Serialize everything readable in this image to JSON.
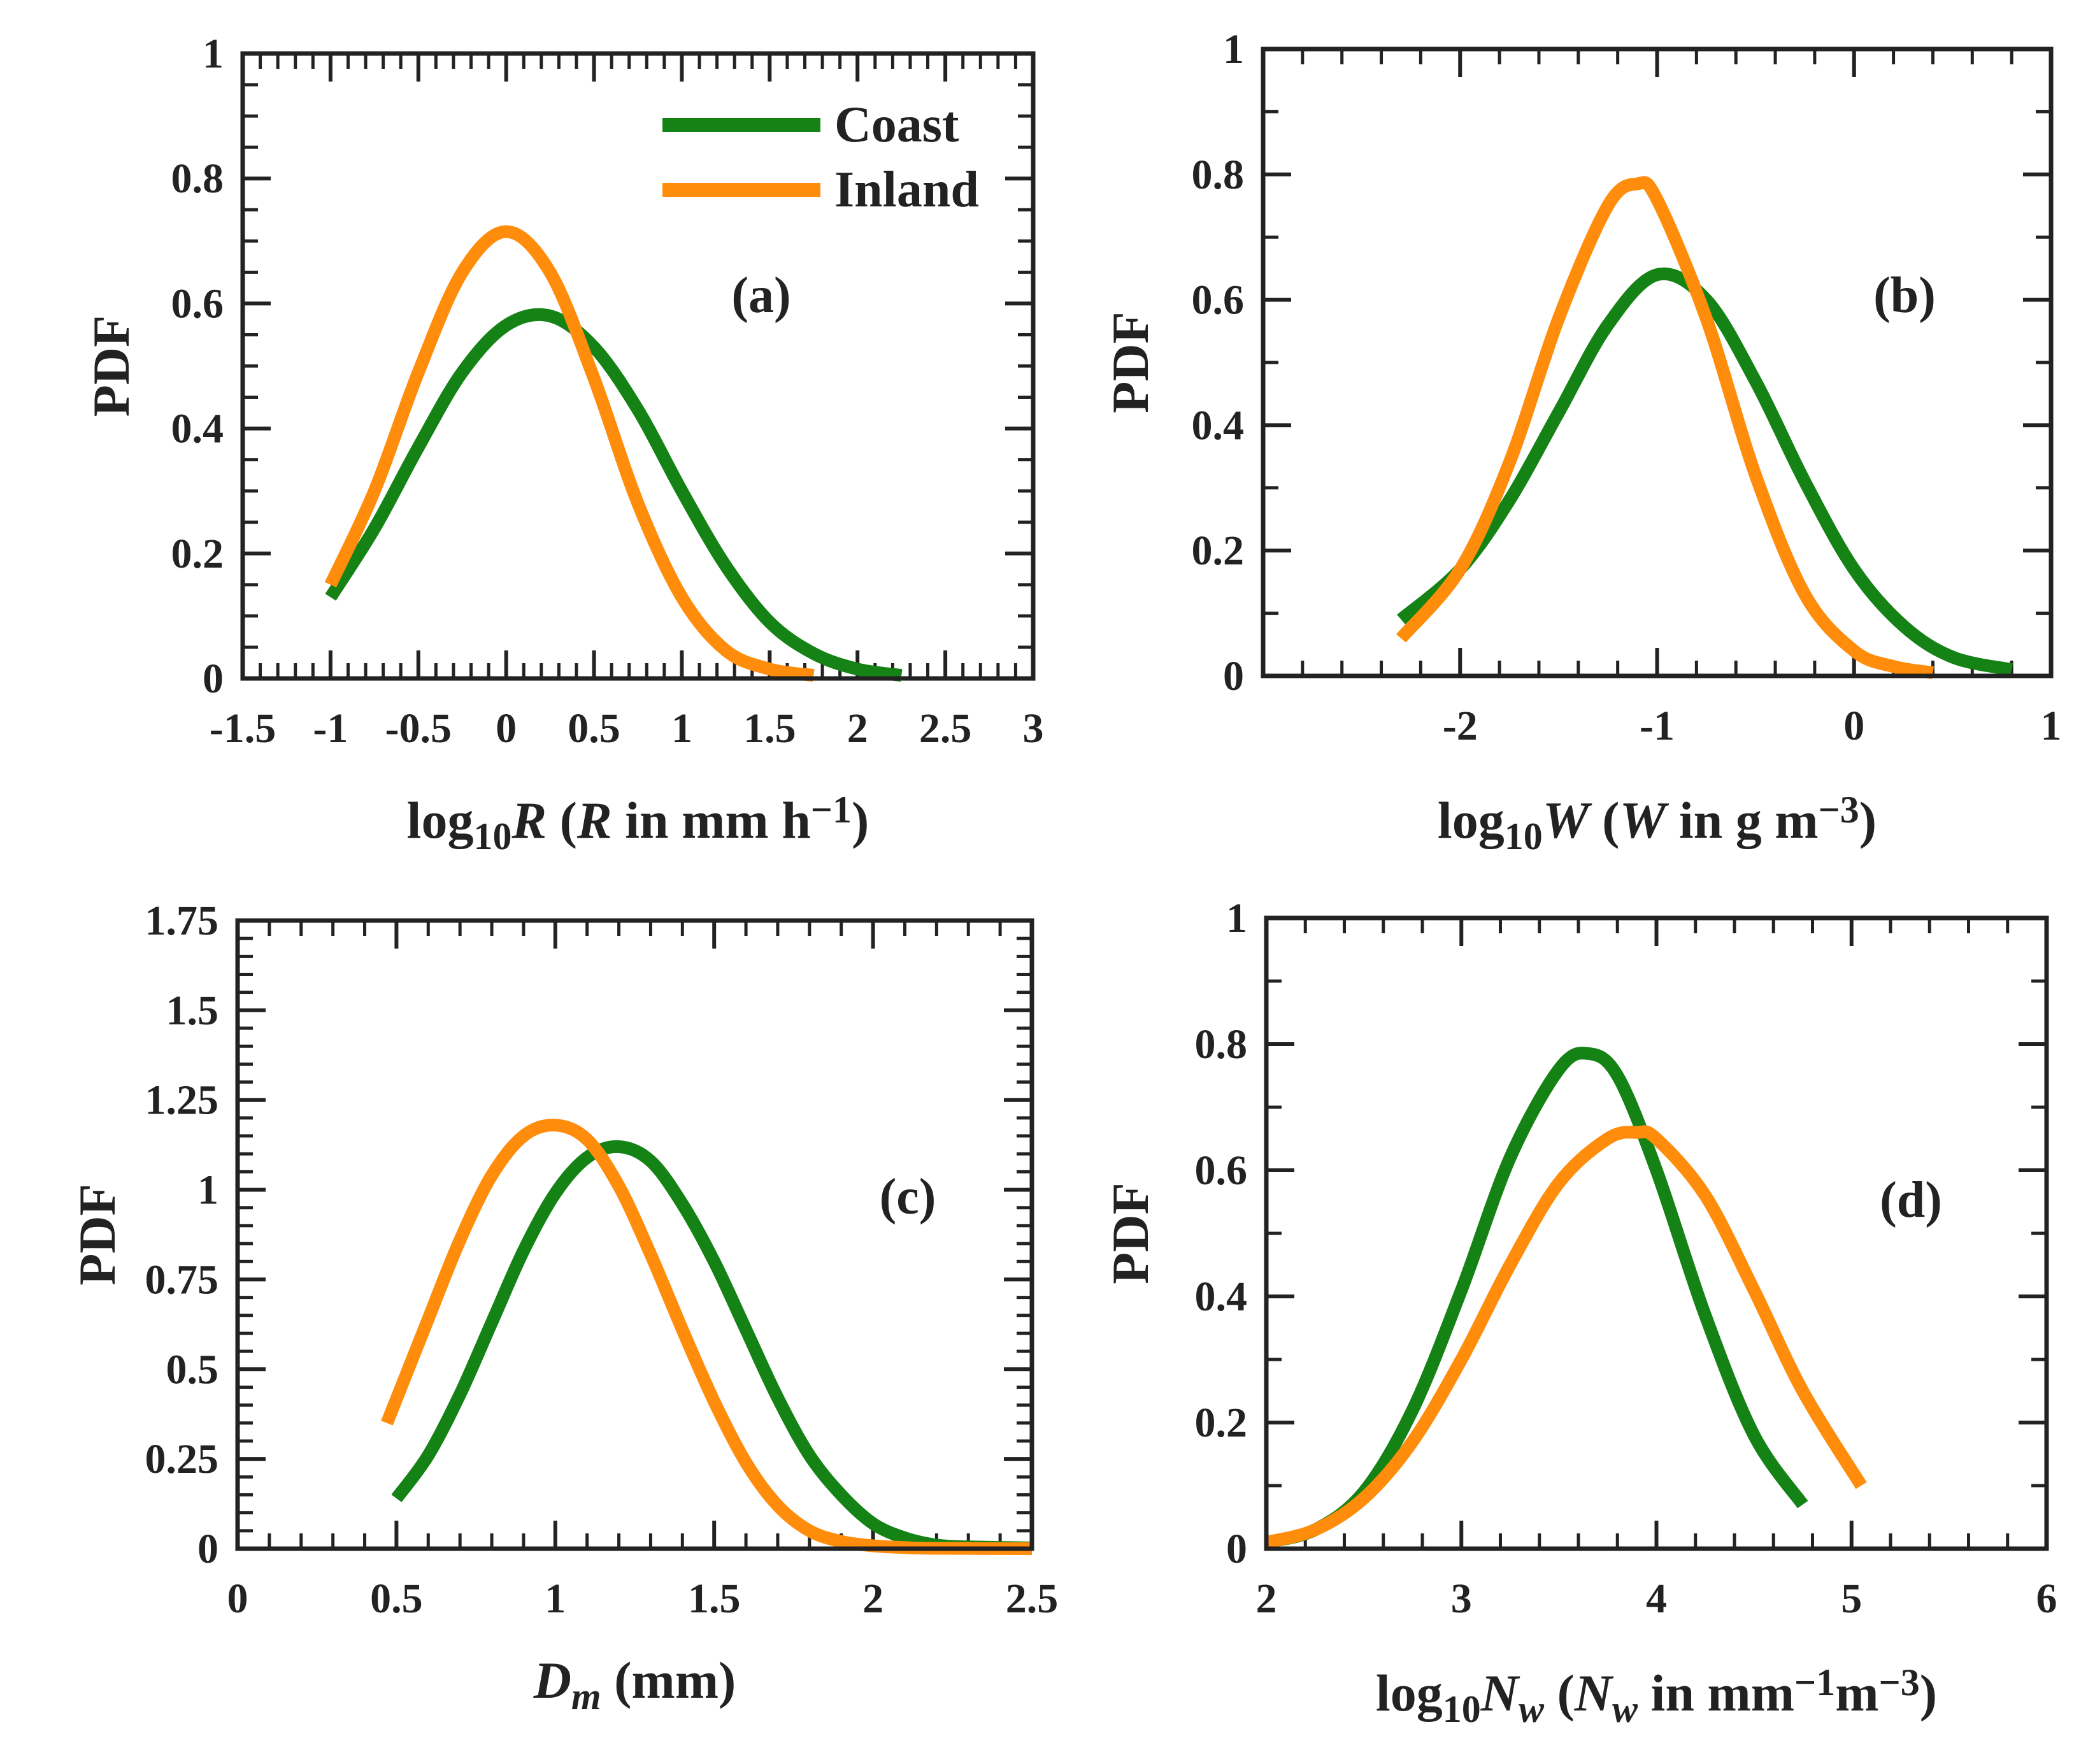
{
  "colors": {
    "coast": "#148214",
    "inland": "#ff8c0a",
    "axis": "#222222"
  },
  "legend": {
    "coast": "Coast",
    "inland": "Inland",
    "placement": "top-right of panel (a)"
  },
  "chart_data": [
    {
      "type": "line",
      "panel_label": "(a)",
      "ylabel": "PDF",
      "xlabel": {
        "prefix": "log",
        "sub": "10",
        "var": "R",
        "mid": " (",
        "var2": "R",
        "unit": " in mm h",
        "sup": "−1",
        "suffix": ")"
      },
      "xlim": [
        -1.5,
        3
      ],
      "ylim": [
        0,
        1
      ],
      "xticks": [
        "-1.5",
        "-1",
        "-0.5",
        "0",
        "0.5",
        "1",
        "1.5",
        "2",
        "2.5",
        "3"
      ],
      "yticks": [
        "0",
        "0.2",
        "0.4",
        "0.6",
        "0.8",
        "1"
      ],
      "minor_x": 0.1,
      "minor_y": 0.05,
      "legend": true,
      "series": [
        {
          "name": "Coast",
          "x": [
            -1.0,
            -0.75,
            -0.5,
            -0.25,
            0.0,
            0.25,
            0.5,
            0.75,
            1.0,
            1.25,
            1.5,
            1.75,
            2.0,
            2.25
          ],
          "y": [
            0.13,
            0.24,
            0.37,
            0.49,
            0.565,
            0.58,
            0.53,
            0.43,
            0.3,
            0.18,
            0.09,
            0.04,
            0.015,
            0.005
          ]
        },
        {
          "name": "Inland",
          "x": [
            -1.0,
            -0.75,
            -0.5,
            -0.25,
            0.0,
            0.25,
            0.5,
            0.75,
            1.0,
            1.25,
            1.5,
            1.75
          ],
          "y": [
            0.15,
            0.3,
            0.49,
            0.65,
            0.715,
            0.65,
            0.48,
            0.28,
            0.13,
            0.045,
            0.015,
            0.005
          ]
        }
      ]
    },
    {
      "type": "line",
      "panel_label": "(b)",
      "ylabel": "PDF",
      "xlabel": {
        "prefix": "log",
        "sub": "10",
        "var": "W",
        "mid": " (",
        "var2": "W",
        "unit": " in g m",
        "sup": "−3",
        "suffix": ")"
      },
      "xlim": [
        -3,
        1
      ],
      "ylim": [
        0,
        1
      ],
      "xticks": [
        "-2",
        "-1",
        "0",
        "1"
      ],
      "xtick_values": [
        -2,
        -1,
        0,
        1
      ],
      "yticks": [
        "0",
        "0.2",
        "0.4",
        "0.6",
        "0.8",
        "1"
      ],
      "minor_x": 0.2,
      "minor_y": 0.1,
      "legend": false,
      "series": [
        {
          "name": "Coast",
          "x": [
            -2.3,
            -2.0,
            -1.75,
            -1.5,
            -1.25,
            -1.0,
            -0.75,
            -0.5,
            -0.25,
            0.0,
            0.25,
            0.5,
            0.8
          ],
          "y": [
            0.09,
            0.17,
            0.28,
            0.42,
            0.56,
            0.64,
            0.6,
            0.47,
            0.31,
            0.17,
            0.08,
            0.03,
            0.01
          ]
        },
        {
          "name": "Inland",
          "x": [
            -2.3,
            -2.0,
            -1.75,
            -1.5,
            -1.25,
            -1.1,
            -1.0,
            -0.75,
            -0.5,
            -0.25,
            0.0,
            0.2,
            0.4
          ],
          "y": [
            0.06,
            0.17,
            0.34,
            0.57,
            0.75,
            0.785,
            0.76,
            0.57,
            0.32,
            0.13,
            0.04,
            0.015,
            0.005
          ]
        }
      ]
    },
    {
      "type": "line",
      "panel_label": "(c)",
      "ylabel": "PDF",
      "xlabel": {
        "var": "D",
        "sub": "m",
        "unit": " (mm)"
      },
      "xlim": [
        0,
        2.5
      ],
      "ylim": [
        0,
        1.75
      ],
      "xticks": [
        "0",
        "0.5",
        "1",
        "1.5",
        "2",
        "2.5"
      ],
      "yticks": [
        "0",
        "0.25",
        "0.5",
        "0.75",
        "1",
        "1.25",
        "1.5",
        "1.75"
      ],
      "minor_x": 0.1,
      "minor_y": 0.05,
      "legend": false,
      "series": [
        {
          "name": "Coast",
          "x": [
            0.5,
            0.6,
            0.7,
            0.8,
            0.9,
            1.0,
            1.1,
            1.2,
            1.3,
            1.4,
            1.5,
            1.6,
            1.7,
            1.8,
            1.9,
            2.0,
            2.1,
            2.2,
            2.3,
            2.5
          ],
          "y": [
            0.14,
            0.26,
            0.43,
            0.63,
            0.83,
            0.99,
            1.09,
            1.12,
            1.08,
            0.96,
            0.8,
            0.61,
            0.42,
            0.26,
            0.15,
            0.07,
            0.03,
            0.01,
            0.005,
            0.002
          ]
        },
        {
          "name": "Inland",
          "x": [
            0.47,
            0.6,
            0.7,
            0.8,
            0.9,
            1.0,
            1.1,
            1.2,
            1.3,
            1.4,
            1.5,
            1.6,
            1.7,
            1.8,
            1.9,
            2.0,
            2.1,
            2.2,
            2.5
          ],
          "y": [
            0.35,
            0.64,
            0.86,
            1.04,
            1.15,
            1.18,
            1.14,
            1.01,
            0.82,
            0.61,
            0.41,
            0.24,
            0.12,
            0.05,
            0.02,
            0.008,
            0.003,
            0.001,
            0.0
          ]
        }
      ]
    },
    {
      "type": "line",
      "panel_label": "(d)",
      "ylabel": "PDF",
      "xlabel": {
        "prefix": "log",
        "sub": "10",
        "var": "N",
        "varsub": "w",
        "mid": " (",
        "var2": "N",
        "var2sub": "w",
        "unit": " in mm",
        "sup": "−1",
        "unit2": "m",
        "sup2": "−3",
        "suffix": ")"
      },
      "xlim": [
        2,
        6
      ],
      "ylim": [
        0,
        1
      ],
      "xticks": [
        "2",
        "3",
        "4",
        "5",
        "6"
      ],
      "yticks": [
        "0",
        "0.2",
        "0.4",
        "0.6",
        "0.8",
        "1"
      ],
      "minor_x": 0.2,
      "minor_y": 0.1,
      "legend": false,
      "series": [
        {
          "name": "Coast",
          "x": [
            2.0,
            2.25,
            2.5,
            2.75,
            3.0,
            3.25,
            3.5,
            3.65,
            3.8,
            4.0,
            4.25,
            4.5,
            4.75
          ],
          "y": [
            0.01,
            0.03,
            0.09,
            0.22,
            0.41,
            0.62,
            0.76,
            0.785,
            0.75,
            0.6,
            0.37,
            0.18,
            0.07
          ]
        },
        {
          "name": "Inland",
          "x": [
            2.0,
            2.25,
            2.5,
            2.75,
            3.0,
            3.25,
            3.5,
            3.75,
            3.9,
            4.0,
            4.25,
            4.5,
            4.75,
            5.05
          ],
          "y": [
            0.01,
            0.03,
            0.08,
            0.17,
            0.3,
            0.45,
            0.58,
            0.65,
            0.66,
            0.65,
            0.56,
            0.41,
            0.25,
            0.1
          ]
        }
      ]
    }
  ]
}
